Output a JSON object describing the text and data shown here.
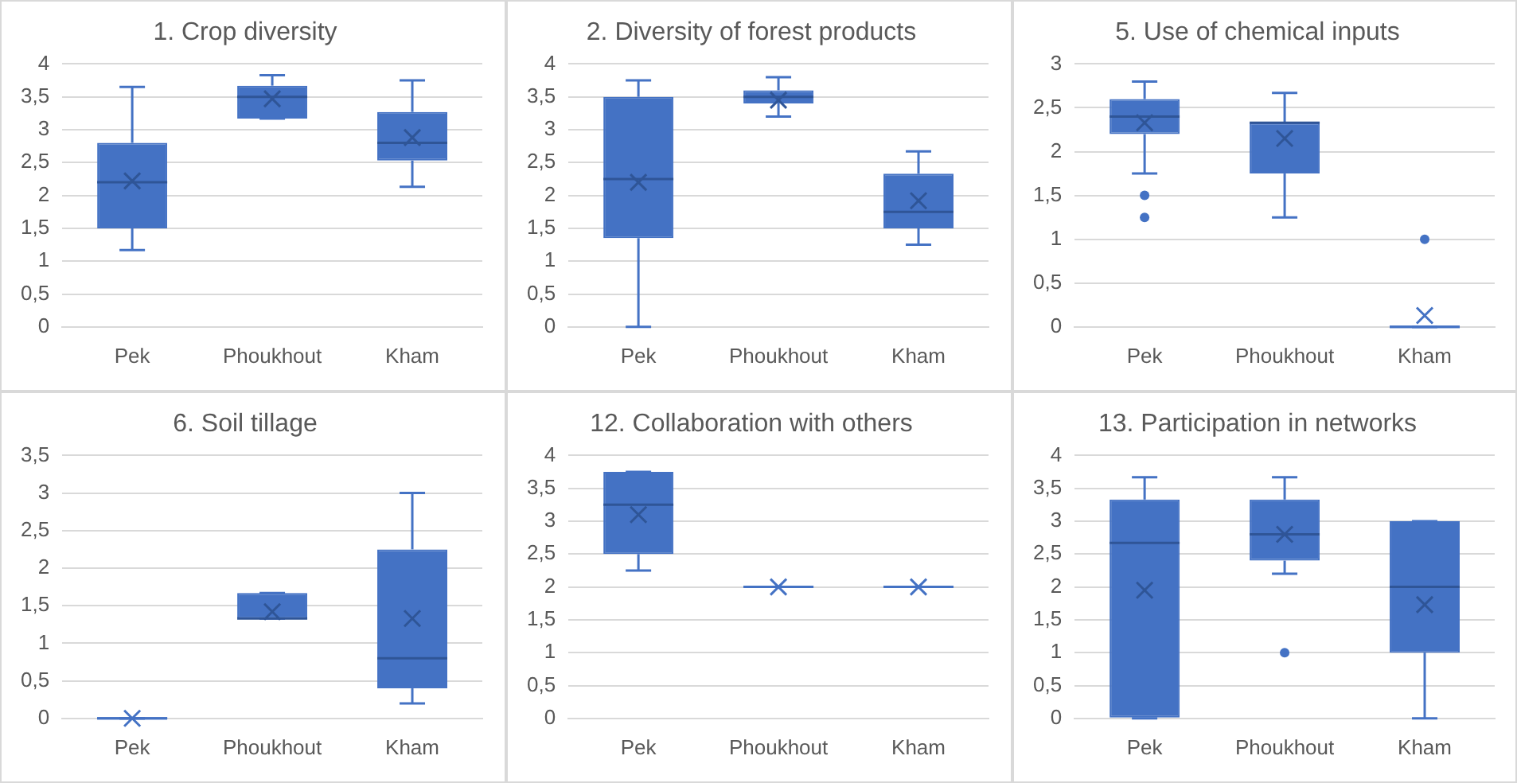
{
  "chart_data": [
    {
      "type": "box",
      "title": "1. Crop diversity",
      "categories": [
        "Pek",
        "Phoukhout",
        "Kham"
      ],
      "color": "#4472c4",
      "grid": "y",
      "ylim": [
        0,
        4
      ],
      "yticks": [
        0,
        {
          "value": 0.5,
          "label": "0,5"
        },
        1,
        {
          "value": 1.5,
          "label": "1,5"
        },
        2,
        {
          "value": 2.5,
          "label": "2,5"
        },
        3,
        {
          "value": 3.5,
          "label": "3,5"
        },
        4
      ],
      "boxes": [
        {
          "low": 1.17,
          "q1": 1.5,
          "median": 2.2,
          "q3": 2.8,
          "high": 3.65,
          "mean": 2.22
        },
        {
          "low": 3.17,
          "q1": 3.17,
          "median": 3.5,
          "q3": 3.67,
          "high": 3.83,
          "mean": 3.47
        },
        {
          "low": 2.13,
          "q1": 2.53,
          "median": 2.8,
          "q3": 3.27,
          "high": 3.75,
          "mean": 2.88
        }
      ]
    },
    {
      "type": "box",
      "title": "2. Diversity of forest products",
      "categories": [
        "Pek",
        "Phoukhout",
        "Kham"
      ],
      "color": "#4472c4",
      "grid": "y",
      "ylim": [
        0,
        4
      ],
      "yticks": [
        0,
        {
          "value": 0.5,
          "label": "0,5"
        },
        1,
        {
          "value": 1.5,
          "label": "1,5"
        },
        2,
        {
          "value": 2.5,
          "label": "2,5"
        },
        3,
        {
          "value": 3.5,
          "label": "3,5"
        },
        4
      ],
      "boxes": [
        {
          "low": 0,
          "q1": 1.35,
          "median": 2.25,
          "q3": 3.5,
          "high": 3.75,
          "mean": 2.2
        },
        {
          "low": 3.2,
          "q1": 3.4,
          "median": 3.5,
          "q3": 3.6,
          "high": 3.8,
          "mean": 3.45
        },
        {
          "low": 1.25,
          "q1": 1.5,
          "median": 1.75,
          "q3": 2.33,
          "high": 2.67,
          "mean": 1.92
        }
      ]
    },
    {
      "type": "box",
      "title": "5. Use of chemical inputs",
      "categories": [
        "Pek",
        "Phoukhout",
        "Kham"
      ],
      "color": "#4472c4",
      "grid": "y",
      "ylim": [
        0,
        3
      ],
      "yticks": [
        0,
        {
          "value": 0.5,
          "label": "0,5"
        },
        1,
        {
          "value": 1.5,
          "label": "1,5"
        },
        2,
        {
          "value": 2.5,
          "label": "2,5"
        },
        3
      ],
      "boxes": [
        {
          "low": 1.75,
          "q1": 2.2,
          "median": 2.4,
          "q3": 2.6,
          "high": 2.8,
          "mean": 2.33,
          "outliers": [
            1.5,
            1.25
          ]
        },
        {
          "low": 1.25,
          "q1": 1.75,
          "median": 2.33,
          "q3": 2.33,
          "high": 2.67,
          "mean": 2.15
        },
        {
          "low": 0,
          "q1": 0,
          "median": 0,
          "q3": 0,
          "high": 0,
          "mean": 0.13,
          "outliers": [
            1
          ]
        }
      ]
    },
    {
      "type": "box",
      "title": "6. Soil tillage",
      "categories": [
        "Pek",
        "Phoukhout",
        "Kham"
      ],
      "color": "#4472c4",
      "grid": "y",
      "ylim": [
        0,
        3.5
      ],
      "yticks": [
        0,
        {
          "value": 0.5,
          "label": "0,5"
        },
        1,
        {
          "value": 1.5,
          "label": "1,5"
        },
        2,
        {
          "value": 2.5,
          "label": "2,5"
        },
        3,
        {
          "value": 3.5,
          "label": "3,5"
        }
      ],
      "boxes": [
        {
          "low": 0,
          "q1": 0,
          "median": 0,
          "q3": 0,
          "high": 0,
          "mean": 0
        },
        {
          "low": 1.33,
          "q1": 1.33,
          "median": 1.33,
          "q3": 1.67,
          "high": 1.67,
          "mean": 1.42
        },
        {
          "low": 0.2,
          "q1": 0.4,
          "median": 0.8,
          "q3": 2.25,
          "high": 3,
          "mean": 1.33
        }
      ]
    },
    {
      "type": "box",
      "title": "12. Collaboration with others",
      "categories": [
        "Pek",
        "Phoukhout",
        "Kham"
      ],
      "color": "#4472c4",
      "grid": "y",
      "ylim": [
        0,
        4
      ],
      "yticks": [
        0,
        {
          "value": 0.5,
          "label": "0,5"
        },
        1,
        {
          "value": 1.5,
          "label": "1,5"
        },
        2,
        {
          "value": 2.5,
          "label": "2,5"
        },
        3,
        {
          "value": 3.5,
          "label": "3,5"
        },
        4
      ],
      "boxes": [
        {
          "low": 2.25,
          "q1": 2.5,
          "median": 3.25,
          "q3": 3.75,
          "high": 3.75,
          "mean": 3.1
        },
        {
          "low": 2,
          "q1": 2,
          "median": 2,
          "q3": 2,
          "high": 2,
          "mean": 2
        },
        {
          "low": 2,
          "q1": 2,
          "median": 2,
          "q3": 2,
          "high": 2,
          "mean": 2
        }
      ]
    },
    {
      "type": "box",
      "title": "13. Participation in networks",
      "categories": [
        "Pek",
        "Phoukhout",
        "Kham"
      ],
      "color": "#4472c4",
      "grid": "y",
      "ylim": [
        0,
        4
      ],
      "yticks": [
        0,
        {
          "value": 0.5,
          "label": "0,5"
        },
        1,
        {
          "value": 1.5,
          "label": "1,5"
        },
        2,
        {
          "value": 2.5,
          "label": "2,5"
        },
        3,
        {
          "value": 3.5,
          "label": "3,5"
        },
        4
      ],
      "boxes": [
        {
          "low": 0,
          "q1": 0,
          "median": 2.67,
          "q3": 3.33,
          "high": 3.67,
          "mean": 1.95
        },
        {
          "low": 2.2,
          "q1": 2.4,
          "median": 2.8,
          "q3": 3.33,
          "high": 3.67,
          "mean": 2.8,
          "outliers": [
            1
          ]
        },
        {
          "low": 0,
          "q1": 1,
          "median": 2,
          "q3": 3,
          "high": 3,
          "mean": 1.73
        }
      ]
    }
  ]
}
